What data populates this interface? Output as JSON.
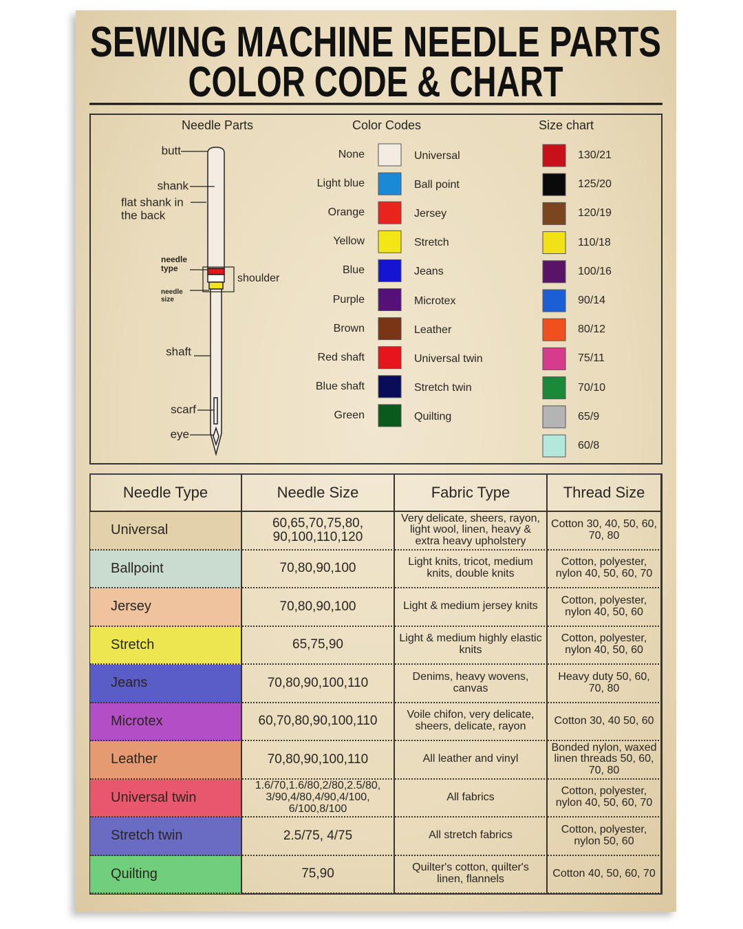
{
  "title": {
    "line1": "SEWING MACHINE NEEDLE PARTS",
    "line2": "COLOR CODE & CHART"
  },
  "needle_parts": {
    "heading": "Needle Parts",
    "labels": [
      "butt",
      "shank",
      "flat shank in the back",
      "needle type",
      "needle size",
      "shoulder",
      "shaft",
      "scarf",
      "eye"
    ]
  },
  "color_codes": {
    "heading": "Color Codes",
    "rows": [
      {
        "code": "None",
        "color": "#f3ece2",
        "type": "Universal"
      },
      {
        "code": "Light blue",
        "color": "#1a8ad6",
        "type": "Ball point"
      },
      {
        "code": "Orange",
        "color": "#e8241c",
        "type": "Jersey"
      },
      {
        "code": "Yellow",
        "color": "#f2e616",
        "type": "Stretch"
      },
      {
        "code": "Blue",
        "color": "#1414d2",
        "type": "Jeans"
      },
      {
        "code": "Purple",
        "color": "#56107a",
        "type": "Microtex"
      },
      {
        "code": "Brown",
        "color": "#7a3416",
        "type": "Leather"
      },
      {
        "code": "Red shaft",
        "color": "#e8141c",
        "type": "Universal twin"
      },
      {
        "code": "Blue shaft",
        "color": "#0a0c5a",
        "type": "Stretch twin"
      },
      {
        "code": "Green",
        "color": "#0a5a1e",
        "type": "Quilting"
      }
    ]
  },
  "size_chart": {
    "heading": "Size chart",
    "rows": [
      {
        "color": "#c8101a",
        "size": "130/21"
      },
      {
        "color": "#0a0a0a",
        "size": "125/20"
      },
      {
        "color": "#7b4520",
        "size": "120/19"
      },
      {
        "color": "#f1e116",
        "size": "110/18"
      },
      {
        "color": "#5a1467",
        "size": "100/16"
      },
      {
        "color": "#1a5fd6",
        "size": "90/14"
      },
      {
        "color": "#f0501e",
        "size": "80/12"
      },
      {
        "color": "#d63c8c",
        "size": "75/11"
      },
      {
        "color": "#1a8a3a",
        "size": "70/10"
      },
      {
        "color": "#b4b4b4",
        "size": "65/9"
      },
      {
        "color": "#b4e8dc",
        "size": "60/8"
      }
    ]
  },
  "table": {
    "header": [
      "Needle Type",
      "Needle Size",
      "Fabric Type",
      "Thread Size"
    ],
    "rows": [
      {
        "color": "#e3d1ab",
        "cells": [
          "Universal",
          "60,65,70,75,80, 90,100,110,120",
          "Very delicate, sheers, rayon, light wool, linen, heavy & extra heavy upholstery",
          "Cotton 30, 40, 50, 60, 70, 80"
        ]
      },
      {
        "color": "#c9dccf",
        "cells": [
          "Ballpoint",
          "70,80,90,100",
          "Light knits, tricot, medium knits, double knits",
          "Cotton, polyester, nylon 40, 50, 60, 70"
        ]
      },
      {
        "color": "#efc39e",
        "cells": [
          "Jersey",
          "70,80,90,100",
          "Light & medium jersey knits",
          "Cotton, polyester, nylon 40, 50, 60"
        ]
      },
      {
        "color": "#ede64f",
        "cells": [
          "Stretch",
          "65,75,90",
          "Light & medium highly elastic knits",
          "Cotton, polyester, nylon 40, 50, 60"
        ]
      },
      {
        "color": "#5a5cc8",
        "cells": [
          "Jeans",
          "70,80,90,100,110",
          "Denims, heavy wovens, canvas",
          "Heavy duty 50, 60, 70, 80"
        ]
      },
      {
        "color": "#b24fc6",
        "cells": [
          "Microtex",
          "60,70,80,90,100,110",
          "Voile chifon, very delicate, sheers, delicate, rayon",
          "Cotton 30, 40 50, 60"
        ]
      },
      {
        "color": "#e59a72",
        "cells": [
          "Leather",
          "70,80,90,100,110",
          "All leather and vinyl",
          "Bonded nylon, waxed linen threads 50, 60, 70, 80"
        ]
      },
      {
        "color": "#e8576b",
        "cells": [
          "Universal twin",
          "1.6/70,1.6/80,2/80,2.5/80, 3/90,4/80,4/90,4/100, 6/100,8/100",
          "All fabrics",
          "Cotton, polyester, nylon 40, 50, 60, 70"
        ]
      },
      {
        "color": "#6a6cc4",
        "cells": [
          "Stretch twin",
          "2.5/75, 4/75",
          "All stretch fabrics",
          "Cotton, polyester, nylon 50, 60"
        ]
      },
      {
        "color": "#6fcf7c",
        "cells": [
          "Quilting",
          "75,90",
          "Quilter's cotton, quilter's linen, flannels",
          "Cotton 40, 50, 60, 70"
        ]
      }
    ]
  }
}
